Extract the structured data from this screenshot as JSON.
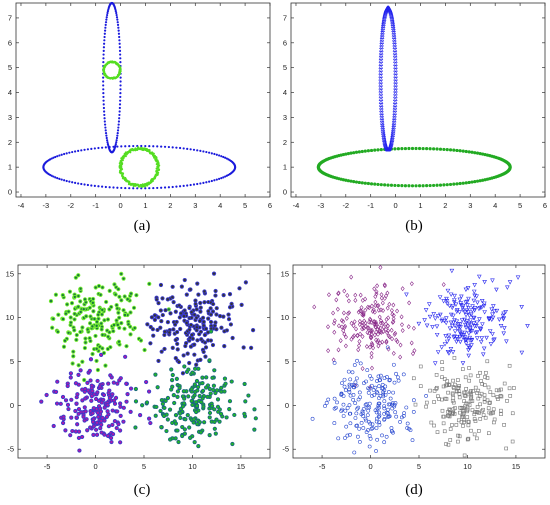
{
  "chart_data": [
    {
      "type": "scatter",
      "panel_label": "(a)",
      "xlim": [
        -4.2,
        6.0
      ],
      "ylim": [
        -0.2,
        7.6
      ],
      "x_ticks": [
        -4,
        -3,
        -2,
        -1,
        0,
        1,
        2,
        3,
        4,
        5,
        6
      ],
      "y_ticks": [
        0,
        1,
        2,
        3,
        4,
        5,
        6,
        7
      ],
      "grid": false,
      "shapes": [
        {
          "kind": "ellipse",
          "cx": 0.75,
          "cy": 1.0,
          "rx": 3.85,
          "ry": 0.85,
          "color": "#1a1adc",
          "n": 150,
          "marker": "dot"
        },
        {
          "kind": "ellipse",
          "cx": -0.35,
          "cy": 4.6,
          "rx": 0.35,
          "ry": 3.0,
          "color": "#1a1adc",
          "n": 120,
          "marker": "dot"
        },
        {
          "kind": "ring",
          "cx": 0.75,
          "cy": 1.0,
          "r": 0.75,
          "color": "#55dd22",
          "n": 220,
          "marker": "dot"
        },
        {
          "kind": "ring",
          "cx": -0.35,
          "cy": 4.9,
          "r": 0.33,
          "color": "#55dd22",
          "n": 120,
          "marker": "dot"
        }
      ]
    },
    {
      "type": "scatter",
      "panel_label": "(b)",
      "xlim": [
        -4.2,
        6.0
      ],
      "ylim": [
        -0.2,
        7.6
      ],
      "x_ticks": [
        -4,
        -3,
        -2,
        -1,
        0,
        1,
        2,
        3,
        4,
        5,
        6
      ],
      "y_ticks": [
        0,
        1,
        2,
        3,
        4,
        5,
        6,
        7
      ],
      "grid": false,
      "shapes": [
        {
          "kind": "ellipse",
          "cx": 0.75,
          "cy": 1.0,
          "rx": 3.85,
          "ry": 0.75,
          "color": "#22aa22",
          "n": 170,
          "marker": "star"
        },
        {
          "kind": "ellipse",
          "cx": -0.3,
          "cy": 4.55,
          "rx": 0.3,
          "ry": 2.85,
          "color": "#2222ee",
          "n": 150,
          "marker": "triangle"
        }
      ]
    },
    {
      "type": "scatter",
      "panel_label": "(c)",
      "xlim": [
        -8,
        18
      ],
      "ylim": [
        -6,
        16
      ],
      "x_ticks": [
        -5,
        0,
        5,
        10,
        15
      ],
      "y_ticks": [
        -5,
        0,
        5,
        10,
        15
      ],
      "grid": false,
      "clusters": [
        {
          "cx": 0,
          "cy": 9.5,
          "sx": 2.2,
          "sy": 2.2,
          "n": 200,
          "fill": "#1a7a3a",
          "outline": "#77ee33"
        },
        {
          "cx": 10,
          "cy": 9.5,
          "sx": 2.2,
          "sy": 2.2,
          "n": 200,
          "fill": "#333333",
          "outline": "#3a3acc"
        },
        {
          "cx": 0,
          "cy": 0,
          "sx": 2.2,
          "sy": 2.2,
          "n": 200,
          "fill": "#aa1aaa",
          "outline": "#3a3acc"
        },
        {
          "cx": 10,
          "cy": 0,
          "sx": 2.2,
          "sy": 2.2,
          "n": 200,
          "fill": "#22bb22",
          "outline": "#1a6a7a"
        }
      ]
    },
    {
      "type": "scatter",
      "panel_label": "(d)",
      "xlim": [
        -8,
        18
      ],
      "ylim": [
        -6,
        16
      ],
      "x_ticks": [
        -5,
        0,
        5,
        10,
        15
      ],
      "y_ticks": [
        -5,
        0,
        5,
        10,
        15
      ],
      "grid": false,
      "clusters": [
        {
          "cx": 0,
          "cy": 9.5,
          "sx": 2.2,
          "sy": 2.2,
          "n": 200,
          "color": "#8a2a8a",
          "marker": "diamond"
        },
        {
          "cx": 10,
          "cy": 9.5,
          "sx": 2.2,
          "sy": 2.2,
          "n": 200,
          "color": "#2a2aee",
          "marker": "triangle-down"
        },
        {
          "cx": 0,
          "cy": 0,
          "sx": 2.2,
          "sy": 2.2,
          "n": 200,
          "color": "#2a4ad0",
          "marker": "circle"
        },
        {
          "cx": 10,
          "cy": 0,
          "sx": 2.2,
          "sy": 2.2,
          "n": 200,
          "color": "#777777",
          "marker": "square"
        }
      ]
    }
  ]
}
